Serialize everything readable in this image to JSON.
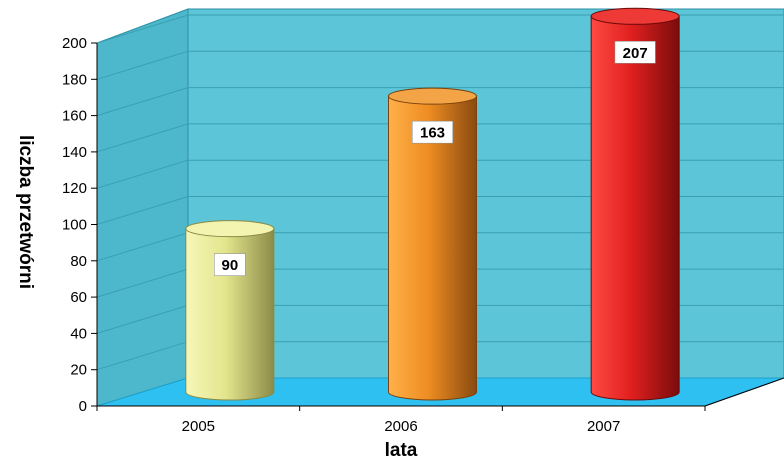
{
  "chart_data": {
    "type": "bar",
    "categories": [
      "2005",
      "2006",
      "2007"
    ],
    "values": [
      90,
      163,
      207
    ],
    "xlabel": "lata",
    "ylabel": "liczba przetwórni",
    "ylim": [
      0,
      200
    ],
    "yticks": [
      "0",
      "20",
      "40",
      "60",
      "80",
      "100",
      "120",
      "140",
      "160",
      "180",
      "200"
    ],
    "data_labels": [
      "90",
      "163",
      "207"
    ],
    "grid": true,
    "style": "3d-cylinder",
    "colors": {
      "back_wall": "#5cc6d8",
      "side_wall": "#4db8cc",
      "floor": "#2ec0f0",
      "gridline": "#3a9fb2",
      "bars": [
        "#e9ea95",
        "#f0962a",
        "#e8262a"
      ]
    }
  }
}
